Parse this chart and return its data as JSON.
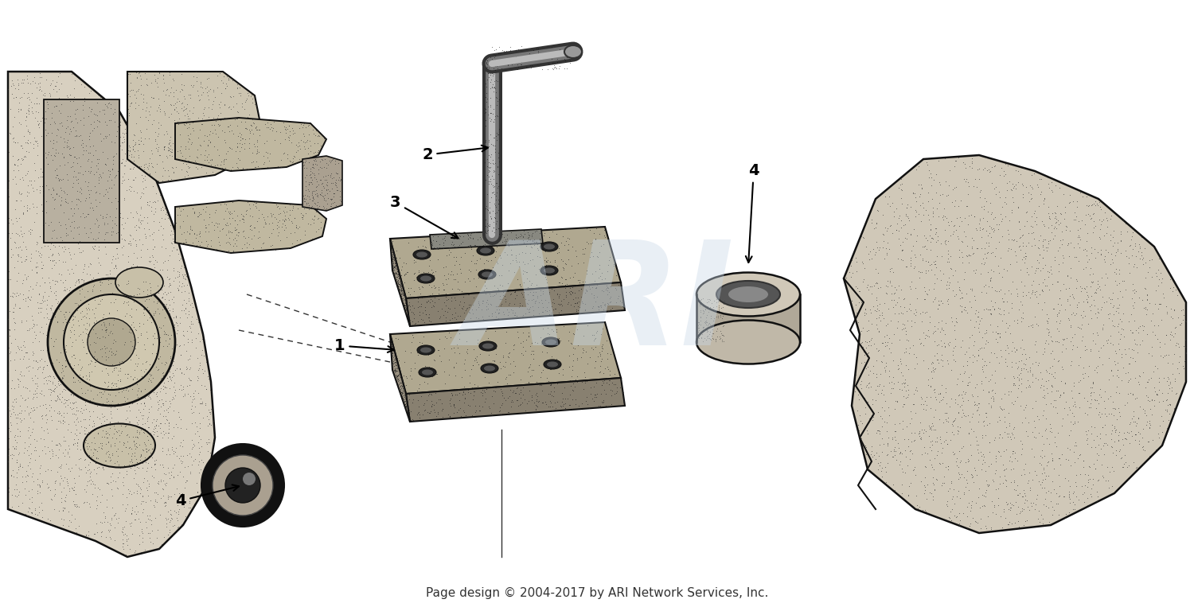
{
  "background_color": "#ffffff",
  "footer_text": "Page design © 2004-2017 by ARI Network Services, Inc.",
  "footer_fontsize": 11,
  "watermark_text": "ARI",
  "watermark_color": "#c8d8e8",
  "watermark_alpha": 0.4,
  "watermark_fontsize": 130,
  "fig_width": 15.0,
  "fig_height": 7.68,
  "dpi": 100
}
